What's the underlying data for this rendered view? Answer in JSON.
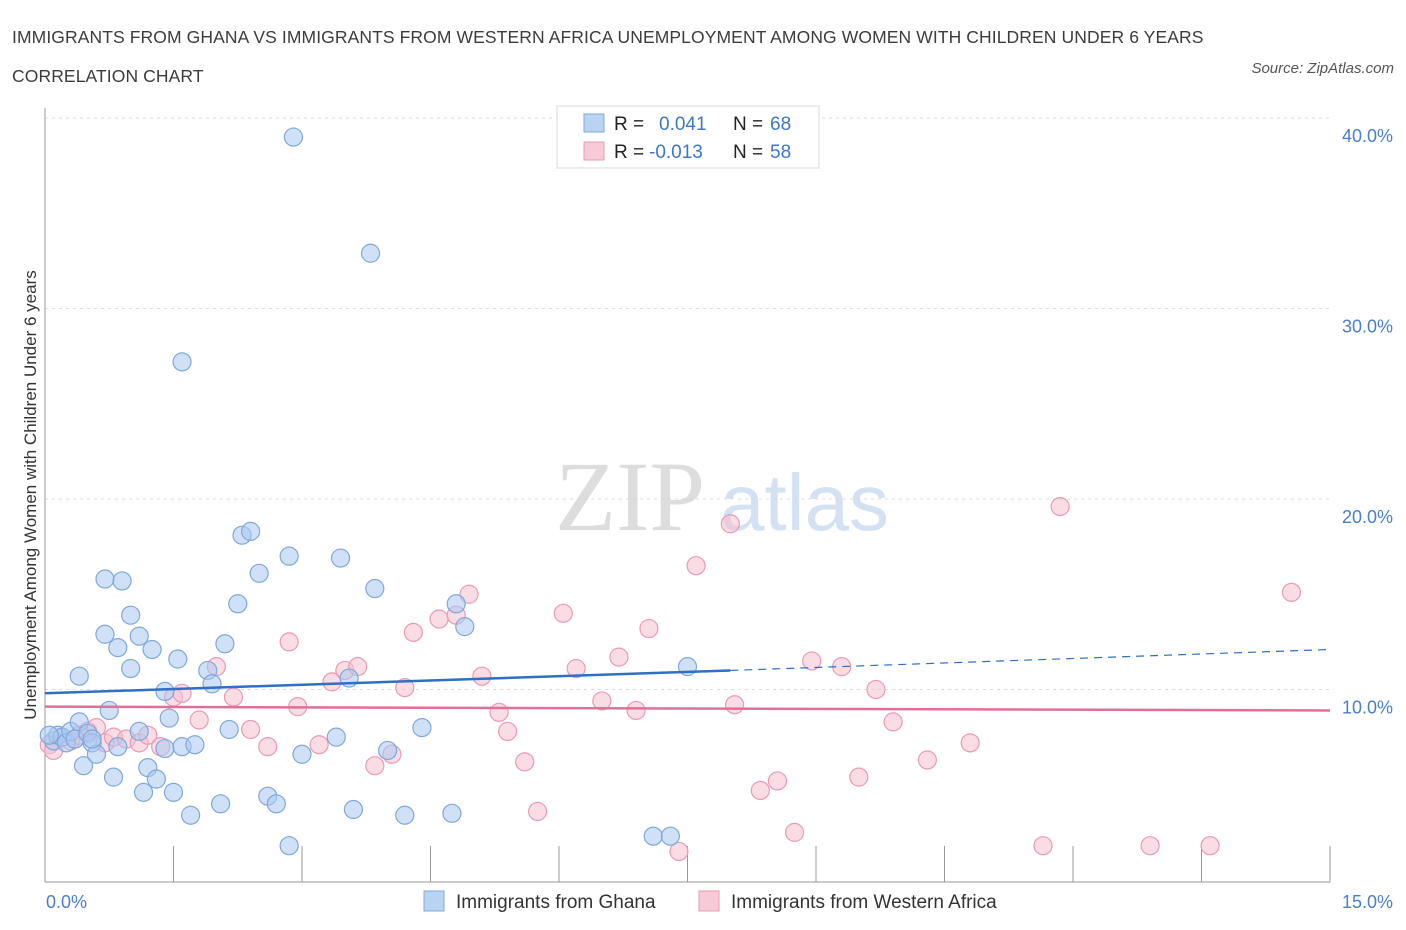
{
  "title": "IMMIGRANTS FROM GHANA VS IMMIGRANTS FROM WESTERN AFRICA UNEMPLOYMENT AMONG WOMEN WITH CHILDREN UNDER 6 YEARS CORRELATION CHART",
  "source": "Source: ZipAtlas.com",
  "watermark": {
    "zip": "ZIP",
    "atlas": "atlas"
  },
  "colors": {
    "ghana_fill": "#a9c8f0",
    "ghana_stroke": "#7fa8dc",
    "ghana_line": "#2f6fc4",
    "wa_fill": "#f6bfd0",
    "wa_stroke": "#eb9ab4",
    "wa_line": "#e0709a",
    "tick_text": "#4a7fc9",
    "grid": "#dcdcdc"
  },
  "legend": {
    "r_label": "R =",
    "n_label": "N =",
    "rows": [
      {
        "r": "0.041",
        "n": "68"
      },
      {
        "r": "-0.013",
        "n": "58"
      }
    ]
  },
  "chart_data": {
    "type": "scatter",
    "title": "IMMIGRANTS FROM GHANA VS IMMIGRANTS FROM WESTERN AFRICA UNEMPLOYMENT AMONG WOMEN WITH CHILDREN UNDER 6 YEARS CORRELATION CHART",
    "xlabel": "",
    "ylabel": "Unemployment Among Women with Children Under 6 years",
    "xlim": [
      0,
      15
    ],
    "ylim": [
      0,
      40
    ],
    "x_tick_labels": [
      "0.0%",
      "15.0%"
    ],
    "y_ticks": [
      10,
      20,
      30,
      40
    ],
    "y_tick_labels": [
      "10.0%",
      "20.0%",
      "30.0%",
      "40.0%"
    ],
    "grid": true,
    "legend_position": "top-center",
    "series": [
      {
        "name": "Immigrants from Ghana",
        "r": 0.041,
        "n": 68,
        "trend": {
          "x0": 0,
          "y0": 9.8,
          "x1": 8.0,
          "y1": 11.0,
          "dashed_to_x": 15,
          "dashed_to_y": 12.1
        },
        "points": [
          [
            0.1,
            7.3
          ],
          [
            0.15,
            7.6
          ],
          [
            0.2,
            7.5
          ],
          [
            0.25,
            7.2
          ],
          [
            0.3,
            7.8
          ],
          [
            0.35,
            7.4
          ],
          [
            0.4,
            8.3
          ],
          [
            0.45,
            6.0
          ],
          [
            0.5,
            7.7
          ],
          [
            0.55,
            7.2
          ],
          [
            0.6,
            6.6
          ],
          [
            0.4,
            10.7
          ],
          [
            0.7,
            15.8
          ],
          [
            0.9,
            15.7
          ],
          [
            0.7,
            12.9
          ],
          [
            0.85,
            12.2
          ],
          [
            1.0,
            13.9
          ],
          [
            1.1,
            12.8
          ],
          [
            1.25,
            12.1
          ],
          [
            1.0,
            11.1
          ],
          [
            0.8,
            5.4
          ],
          [
            0.85,
            7.0
          ],
          [
            0.75,
            8.9
          ],
          [
            1.1,
            7.8
          ],
          [
            1.2,
            5.9
          ],
          [
            1.3,
            5.3
          ],
          [
            1.15,
            4.6
          ],
          [
            1.4,
            6.9
          ],
          [
            1.5,
            4.6
          ],
          [
            1.45,
            8.5
          ],
          [
            1.6,
            7.0
          ],
          [
            1.7,
            3.4
          ],
          [
            1.55,
            11.6
          ],
          [
            1.4,
            9.9
          ],
          [
            1.9,
            11.0
          ],
          [
            1.95,
            10.3
          ],
          [
            2.1,
            12.4
          ],
          [
            2.15,
            7.9
          ],
          [
            2.05,
            4.0
          ],
          [
            2.25,
            14.5
          ],
          [
            2.3,
            18.1
          ],
          [
            2.4,
            18.3
          ],
          [
            2.5,
            16.1
          ],
          [
            2.6,
            4.4
          ],
          [
            2.7,
            4.0
          ],
          [
            2.85,
            1.8
          ],
          [
            2.85,
            17.0
          ],
          [
            3.0,
            6.6
          ],
          [
            3.4,
            7.5
          ],
          [
            3.45,
            16.9
          ],
          [
            3.55,
            10.6
          ],
          [
            3.6,
            3.7
          ],
          [
            3.85,
            15.3
          ],
          [
            4.0,
            6.8
          ],
          [
            4.2,
            3.4
          ],
          [
            4.4,
            8.0
          ],
          [
            4.75,
            3.5
          ],
          [
            4.8,
            14.5
          ],
          [
            4.9,
            13.3
          ],
          [
            7.1,
            2.3
          ],
          [
            7.3,
            2.3
          ],
          [
            7.5,
            11.2
          ],
          [
            1.6,
            27.2
          ],
          [
            3.8,
            32.9
          ],
          [
            2.9,
            39.0
          ],
          [
            0.05,
            7.6
          ],
          [
            0.55,
            7.4
          ],
          [
            1.75,
            7.1
          ]
        ]
      },
      {
        "name": "Immigrants from Western Africa",
        "r": -0.013,
        "n": 58,
        "trend": {
          "x0": 0,
          "y0": 9.1,
          "x1": 15,
          "y1": 8.9
        },
        "points": [
          [
            0.05,
            7.1
          ],
          [
            0.1,
            6.8
          ],
          [
            0.2,
            7.5
          ],
          [
            0.3,
            7.3
          ],
          [
            0.4,
            7.6
          ],
          [
            0.5,
            7.8
          ],
          [
            0.6,
            8.0
          ],
          [
            0.7,
            7.2
          ],
          [
            0.8,
            7.5
          ],
          [
            0.95,
            7.4
          ],
          [
            1.1,
            7.2
          ],
          [
            1.2,
            7.6
          ],
          [
            1.35,
            7.0
          ],
          [
            1.5,
            9.6
          ],
          [
            1.6,
            9.8
          ],
          [
            1.8,
            8.4
          ],
          [
            2.0,
            11.2
          ],
          [
            2.2,
            9.6
          ],
          [
            2.4,
            7.9
          ],
          [
            2.6,
            7.0
          ],
          [
            2.85,
            12.5
          ],
          [
            2.95,
            9.1
          ],
          [
            3.2,
            7.1
          ],
          [
            3.35,
            10.4
          ],
          [
            3.5,
            11.0
          ],
          [
            3.65,
            11.2
          ],
          [
            3.85,
            6.0
          ],
          [
            4.05,
            6.6
          ],
          [
            4.2,
            10.1
          ],
          [
            4.3,
            13.0
          ],
          [
            4.6,
            13.7
          ],
          [
            4.8,
            13.9
          ],
          [
            4.95,
            15.0
          ],
          [
            5.1,
            10.7
          ],
          [
            5.3,
            8.8
          ],
          [
            5.4,
            7.8
          ],
          [
            5.6,
            6.2
          ],
          [
            5.75,
            3.6
          ],
          [
            6.05,
            14.0
          ],
          [
            6.2,
            11.1
          ],
          [
            6.5,
            9.4
          ],
          [
            6.7,
            11.7
          ],
          [
            6.9,
            8.9
          ],
          [
            7.05,
            13.2
          ],
          [
            7.4,
            1.5
          ],
          [
            7.6,
            16.5
          ],
          [
            8.0,
            18.7
          ],
          [
            8.05,
            9.2
          ],
          [
            8.35,
            4.7
          ],
          [
            8.55,
            5.2
          ],
          [
            8.75,
            2.5
          ],
          [
            8.95,
            11.5
          ],
          [
            9.3,
            11.2
          ],
          [
            9.5,
            5.4
          ],
          [
            9.7,
            10.0
          ],
          [
            9.9,
            8.3
          ],
          [
            10.3,
            6.3
          ],
          [
            10.8,
            7.2
          ]
        ],
        "points_extra": [
          [
            11.65,
            1.8
          ],
          [
            11.85,
            19.6
          ],
          [
            12.9,
            1.8
          ],
          [
            13.6,
            1.8
          ],
          [
            14.55,
            15.1
          ]
        ]
      }
    ]
  },
  "bottom_legend": [
    {
      "label": "Immigrants from Ghana"
    },
    {
      "label": "Immigrants from Western Africa"
    }
  ]
}
